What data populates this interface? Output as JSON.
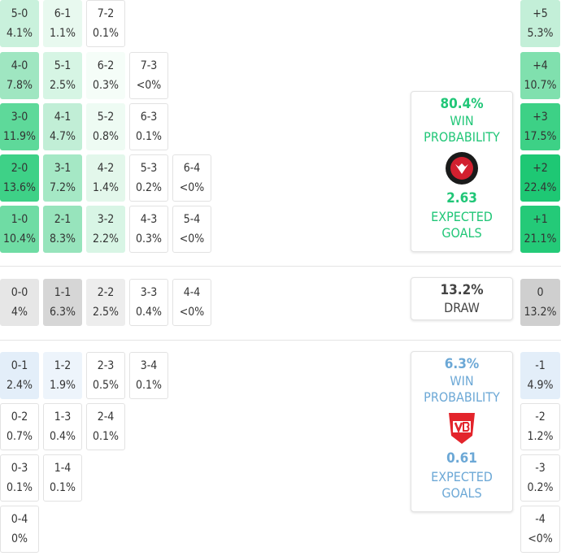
{
  "home": {
    "rows": [
      [
        {
          "score": "5-0",
          "pct": "4.1%",
          "color": "#c9f1dc"
        },
        {
          "score": "6-1",
          "pct": "1.1%",
          "color": "#e8f9ef"
        },
        {
          "score": "7-2",
          "pct": "0.1%"
        }
      ],
      [
        {
          "score": "4-0",
          "pct": "7.8%",
          "color": "#9fe6c1"
        },
        {
          "score": "5-1",
          "pct": "2.5%",
          "color": "#d6f5e4"
        },
        {
          "score": "6-2",
          "pct": "0.3%",
          "color": "#f5fdf8"
        },
        {
          "score": "7-3",
          "pct": "<0%"
        }
      ],
      [
        {
          "score": "3-0",
          "pct": "11.9%",
          "color": "#5ed99a"
        },
        {
          "score": "4-1",
          "pct": "4.7%",
          "color": "#c1eed6"
        },
        {
          "score": "5-2",
          "pct": "0.8%",
          "color": "#eefbf3"
        },
        {
          "score": "6-3",
          "pct": "0.1%"
        }
      ],
      [
        {
          "score": "2-0",
          "pct": "13.6%",
          "color": "#3ed187"
        },
        {
          "score": "3-1",
          "pct": "7.2%",
          "color": "#a5e8c5"
        },
        {
          "score": "4-2",
          "pct": "1.4%",
          "color": "#e3f7eb"
        },
        {
          "score": "5-3",
          "pct": "0.2%"
        },
        {
          "score": "6-4",
          "pct": "<0%"
        }
      ],
      [
        {
          "score": "1-0",
          "pct": "10.4%",
          "color": "#6fdca4"
        },
        {
          "score": "2-1",
          "pct": "8.3%",
          "color": "#97e4bc"
        },
        {
          "score": "3-2",
          "pct": "2.2%",
          "color": "#d8f5e5"
        },
        {
          "score": "4-3",
          "pct": "0.3%"
        },
        {
          "score": "5-4",
          "pct": "<0%"
        }
      ]
    ],
    "diff": [
      {
        "label": "+5",
        "pct": "5.3%",
        "color": "#c3efd8"
      },
      {
        "label": "+4",
        "pct": "10.7%",
        "color": "#80e0ae"
      },
      {
        "label": "+3",
        "pct": "17.5%",
        "color": "#3dd186"
      },
      {
        "label": "+2",
        "pct": "22.4%",
        "color": "#1ec874"
      },
      {
        "label": "+1",
        "pct": "21.1%",
        "color": "#24ca78"
      }
    ],
    "summary": {
      "win_pct": "80.4%",
      "win_label": "WIN PROBABILITY",
      "xg": "2.63",
      "xg_label": "EXPECTED GOALS",
      "color": "#20c677"
    }
  },
  "draw": {
    "row": [
      {
        "score": "0-0",
        "pct": "4%",
        "color": "#e6e6e6"
      },
      {
        "score": "1-1",
        "pct": "6.3%",
        "color": "#d6d6d6"
      },
      {
        "score": "2-2",
        "pct": "2.5%",
        "color": "#ededed"
      },
      {
        "score": "3-3",
        "pct": "0.4%"
      },
      {
        "score": "4-4",
        "pct": "<0%"
      }
    ],
    "diff": {
      "label": "0",
      "pct": "13.2%",
      "color": "#cfcfcf"
    },
    "summary": {
      "pct": "13.2%",
      "label": "DRAW",
      "color": "#444444"
    }
  },
  "away": {
    "rows": [
      [
        {
          "score": "0-1",
          "pct": "2.4%",
          "color": "#e3eef9"
        },
        {
          "score": "1-2",
          "pct": "1.9%",
          "color": "#edf4fb"
        },
        {
          "score": "2-3",
          "pct": "0.5%"
        },
        {
          "score": "3-4",
          "pct": "0.1%"
        }
      ],
      [
        {
          "score": "0-2",
          "pct": "0.7%"
        },
        {
          "score": "1-3",
          "pct": "0.4%"
        },
        {
          "score": "2-4",
          "pct": "0.1%"
        }
      ],
      [
        {
          "score": "0-3",
          "pct": "0.1%"
        },
        {
          "score": "1-4",
          "pct": "0.1%"
        }
      ],
      [
        {
          "score": "0-4",
          "pct": "0%"
        }
      ]
    ],
    "diff": [
      {
        "label": "-1",
        "pct": "4.9%",
        "color": "#e3eef9"
      },
      {
        "label": "-2",
        "pct": "1.2%"
      },
      {
        "label": "-3",
        "pct": "0.2%"
      },
      {
        "label": "-4",
        "pct": "<0%"
      }
    ],
    "summary": {
      "win_pct": "6.3%",
      "win_label": "WIN PROBABILITY",
      "xg": "0.61",
      "xg_label": "EXPECTED GOALS",
      "color": "#6ca8d6"
    }
  }
}
